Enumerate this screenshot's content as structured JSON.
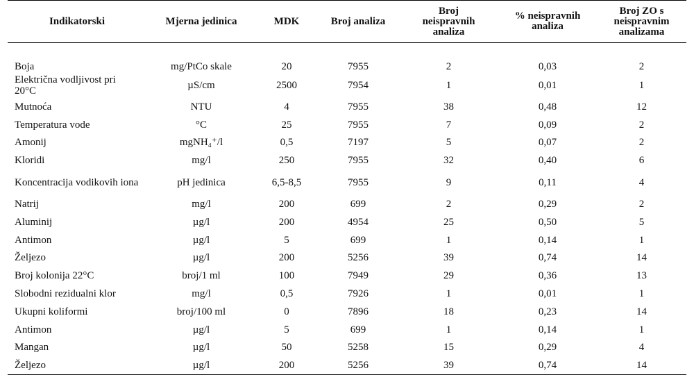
{
  "table": {
    "headers": [
      "Indikatorski",
      "Mjerna jedinica",
      "MDK",
      "Broj analiza",
      "Broj neispravnih analiza",
      "% neispravnih analiza",
      "Broj ZO s neispravnim analizama"
    ],
    "rows": [
      [
        "Boja",
        "mg/PtCo skale",
        "20",
        "7955",
        "2",
        "0,03",
        "2"
      ],
      [
        "Električna vodljivost pri 20°C",
        "µS/cm",
        "2500",
        "7954",
        "1",
        "0,01",
        "1"
      ],
      [
        "Mutnoća",
        "NTU",
        "4",
        "7955",
        "38",
        "0,48",
        "12"
      ],
      [
        "Temperatura vode",
        "°C",
        "25",
        "7955",
        "7",
        "0,09",
        "2"
      ],
      [
        "Amonij",
        "mgNH₄⁺/l",
        "0,5",
        "7197",
        "5",
        "0,07",
        "2"
      ],
      [
        "Kloridi",
        "mg/l",
        "250",
        "7955",
        "32",
        "0,40",
        "6"
      ],
      [
        "Koncentracija vodikovih iona",
        "pH jedinica",
        "6,5-8,5",
        "7955",
        "9",
        "0,11",
        "4"
      ],
      [
        "Natrij",
        "mg/l",
        "200",
        "699",
        "2",
        "0,29",
        "2"
      ],
      [
        "Aluminij",
        "µg/l",
        "200",
        "4954",
        "25",
        "0,50",
        "5"
      ],
      [
        "Antimon",
        "µg/l",
        "5",
        "699",
        "1",
        "0,14",
        "1"
      ],
      [
        "Željezo",
        "µg/l",
        "200",
        "5256",
        "39",
        "0,74",
        "14"
      ],
      [
        "Broj kolonija 22°C",
        "broj/1 ml",
        "100",
        "7949",
        "29",
        "0,36",
        "13"
      ],
      [
        "Slobodni rezidualni klor",
        "mg/l",
        "0,5",
        "7926",
        "1",
        "0,01",
        "1"
      ],
      [
        "Ukupni koliformi",
        "broj/100 ml",
        "0",
        "7896",
        "18",
        "0,23",
        "14"
      ],
      [
        "Antimon",
        "µg/l",
        "5",
        "699",
        "1",
        "0,14",
        "1"
      ],
      [
        "Mangan",
        "µg/l",
        "50",
        "5258",
        "15",
        "0,29",
        "4"
      ],
      [
        "Željezo",
        "µg/l",
        "200",
        "5256",
        "39",
        "0,74",
        "14"
      ]
    ]
  }
}
